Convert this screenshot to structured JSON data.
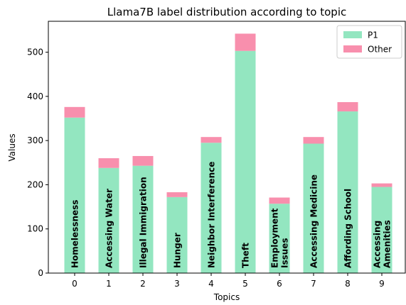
{
  "chart_data": {
    "type": "bar",
    "stacked": true,
    "title": "Llama7B label distribution according to topic",
    "xlabel": "Topics",
    "ylabel": "Values",
    "ylim": [
      0,
      570
    ],
    "yticks": [
      0,
      100,
      200,
      300,
      400,
      500
    ],
    "categories": [
      "0",
      "1",
      "2",
      "3",
      "4",
      "5",
      "6",
      "7",
      "8",
      "9"
    ],
    "topic_names": [
      [
        "Homelessness"
      ],
      [
        "Accessing Water"
      ],
      [
        "Illegal Immigration"
      ],
      [
        "Hunger"
      ],
      [
        "Neighbor Interference"
      ],
      [
        "Theft"
      ],
      [
        "Employment",
        "Issues"
      ],
      [
        "Accessing Medicine"
      ],
      [
        "Affording School"
      ],
      [
        "Accessing",
        "Amenities"
      ]
    ],
    "series": [
      {
        "name": "P1",
        "color": "#93e6c0",
        "values": [
          352,
          238,
          243,
          172,
          295,
          503,
          157,
          293,
          366,
          195
        ]
      },
      {
        "name": "Other",
        "color": "#f88fad",
        "values": [
          24,
          22,
          22,
          11,
          13,
          39,
          14,
          15,
          21,
          8
        ]
      }
    ],
    "legend_position": "top-right",
    "grid": false
  }
}
